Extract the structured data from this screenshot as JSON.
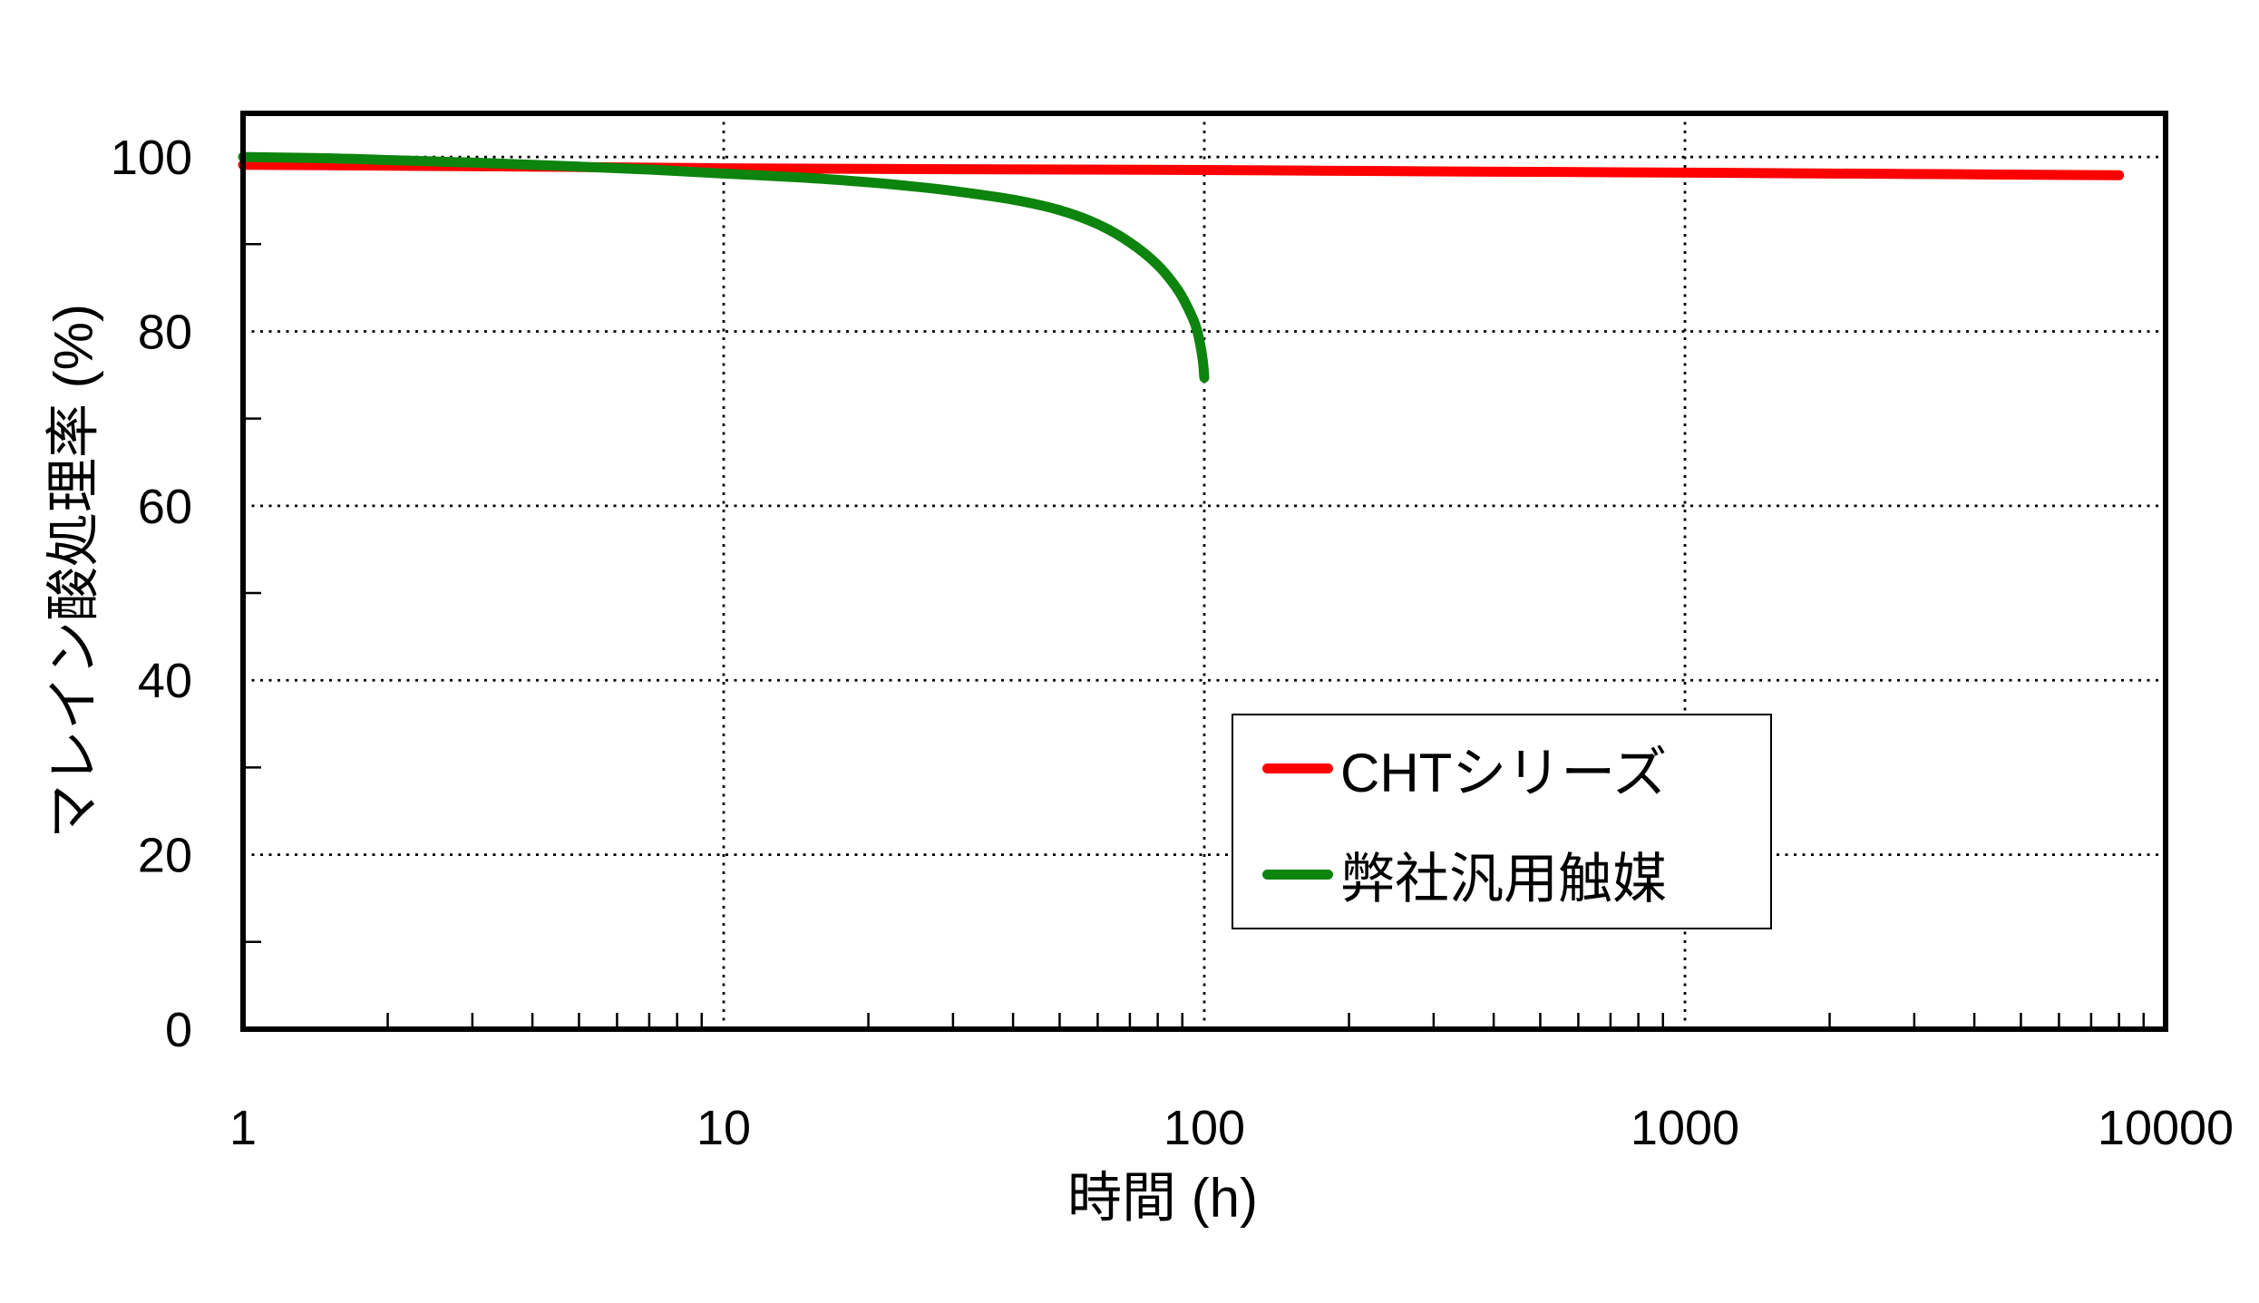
{
  "chart_data": {
    "type": "line",
    "title": "",
    "xlabel": "時間 (h)",
    "ylabel": "マレイン酸処理率 (%)",
    "x_scale": "log10",
    "xlim": [
      1,
      10000
    ],
    "ylim": [
      0,
      105
    ],
    "x_ticks": [
      1,
      10,
      100,
      1000,
      10000
    ],
    "x_tick_labels": [
      "1",
      "10",
      "100",
      "1000",
      "10000"
    ],
    "x_minor_ticks": [
      2,
      3,
      4,
      5,
      6,
      7,
      8,
      9,
      20,
      30,
      40,
      50,
      60,
      70,
      80,
      90,
      200,
      300,
      400,
      500,
      600,
      700,
      800,
      900,
      2000,
      3000,
      4000,
      5000,
      6000,
      7000,
      8000,
      9000
    ],
    "y_ticks": [
      0,
      20,
      40,
      60,
      80,
      100
    ],
    "y_tick_labels": [
      "0",
      "20",
      "40",
      "60",
      "80",
      "100"
    ],
    "y_minor_ticks": [
      10,
      30,
      50,
      70,
      90
    ],
    "grid": {
      "style": "dotted",
      "color": "#000000",
      "x_values": [
        10,
        100,
        1000
      ],
      "y_values": [
        20,
        40,
        60,
        80,
        100
      ]
    },
    "legend": {
      "position": "inside-lower-right",
      "border_color": "#000000",
      "background": "#ffffff"
    },
    "series": [
      {
        "name": "CHTシリーズ",
        "color": "#ff0000",
        "points": [
          [
            1,
            99.1
          ],
          [
            2,
            99.0
          ],
          [
            5,
            98.85
          ],
          [
            10,
            98.7
          ],
          [
            30,
            98.6
          ],
          [
            100,
            98.5
          ],
          [
            300,
            98.35
          ],
          [
            1000,
            98.2
          ],
          [
            3000,
            98.05
          ],
          [
            8000,
            97.9
          ]
        ]
      },
      {
        "name": "弊社汎用触媒",
        "color": "#0d840d",
        "points": [
          [
            1,
            100.0
          ],
          [
            1.5,
            99.85
          ],
          [
            2,
            99.65
          ],
          [
            3,
            99.35
          ],
          [
            4,
            99.1
          ],
          [
            5,
            98.9
          ],
          [
            7,
            98.55
          ],
          [
            10,
            98.1
          ],
          [
            15,
            97.6
          ],
          [
            20,
            97.1
          ],
          [
            25,
            96.6
          ],
          [
            30,
            96.1
          ],
          [
            40,
            95.1
          ],
          [
            50,
            93.9
          ],
          [
            60,
            92.3
          ],
          [
            70,
            90.2
          ],
          [
            80,
            87.6
          ],
          [
            88,
            84.8
          ],
          [
            93,
            82.4
          ],
          [
            96,
            80.6
          ],
          [
            98,
            78.6
          ],
          [
            99.3,
            76.6
          ],
          [
            100,
            74.7
          ]
        ]
      }
    ]
  }
}
